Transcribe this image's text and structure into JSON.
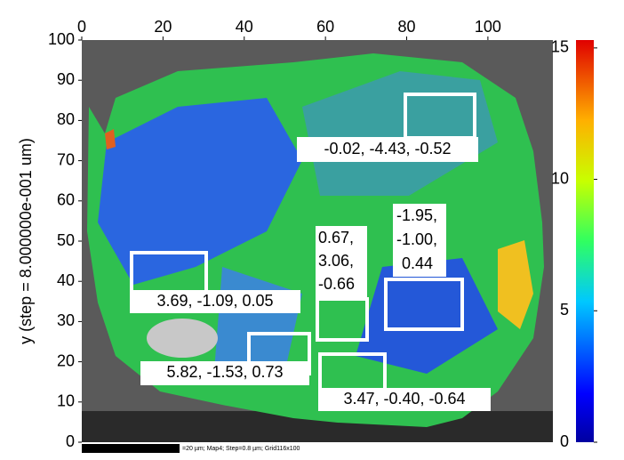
{
  "chart_data": {
    "type": "heatmap",
    "y_label": "y (step = 8.000000e-001 um)",
    "xlim": [
      0,
      116
    ],
    "xticks": [
      0,
      20,
      40,
      60,
      80,
      100
    ],
    "ylim": [
      0,
      100
    ],
    "yticks": [
      0,
      10,
      20,
      30,
      40,
      50,
      60,
      70,
      80,
      90,
      100
    ],
    "clim": [
      0,
      15.3
    ],
    "cticks": [
      0,
      5,
      10,
      15
    ],
    "scale_bar_text": "=20 µm; Map4; Step=0.8 µm; Grid116x100",
    "annotations": [
      {
        "lines": [
          "-0.02, -4.43, -0.52"
        ]
      },
      {
        "lines": [
          "3.69, -1.09,  0.05"
        ]
      },
      {
        "lines": [
          "0.67,",
          "3.06,",
          "-0.66"
        ]
      },
      {
        "lines": [
          "-1.95,",
          "-1.00,",
          "0.44"
        ]
      },
      {
        "lines": [
          "5.82, -1.53,  0.73"
        ]
      },
      {
        "lines": [
          "3.47, -0.40, -0.64"
        ]
      }
    ]
  }
}
